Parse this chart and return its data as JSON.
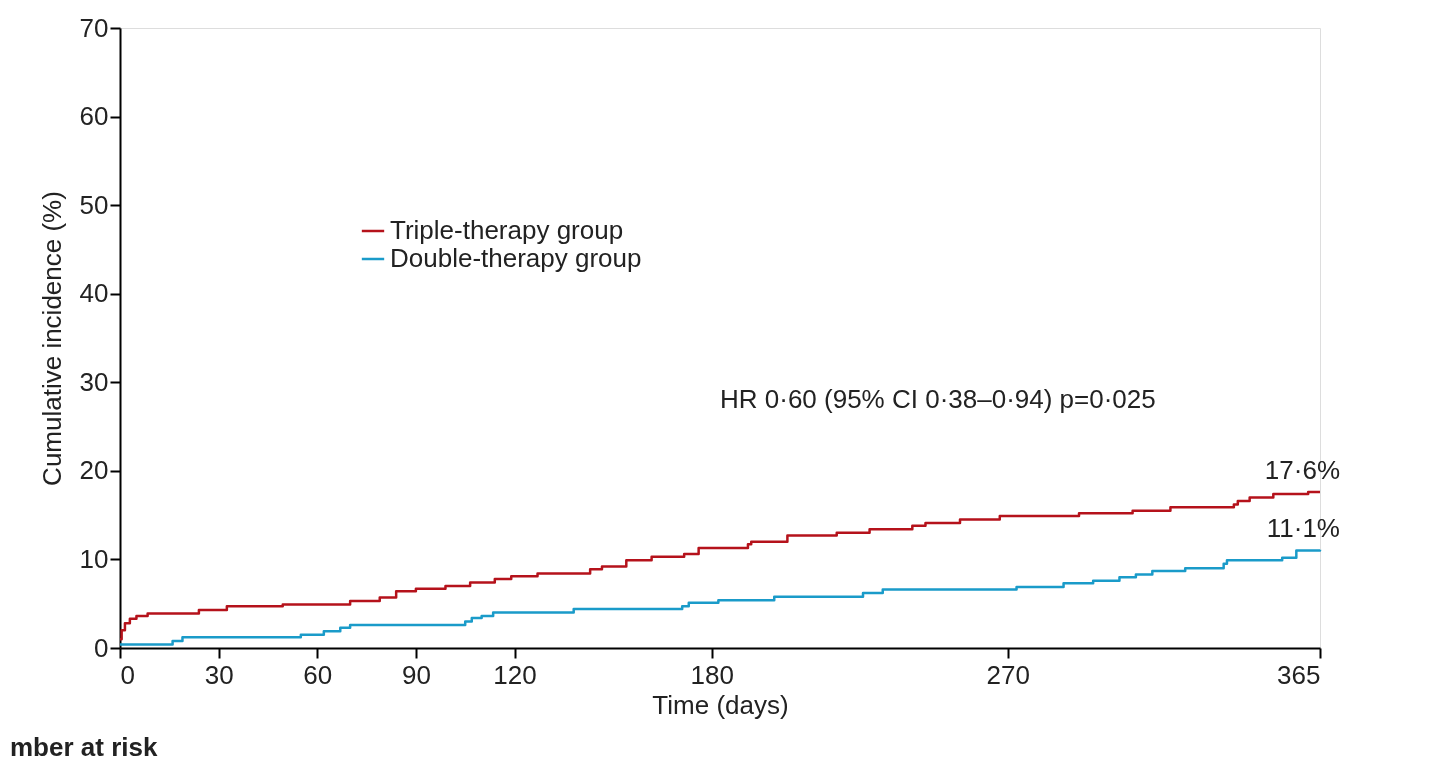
{
  "chart_data": {
    "type": "step",
    "xlabel": "Time (days)",
    "ylabel": "Cumulative incidence (%)",
    "xlim": [
      0,
      365
    ],
    "xticks": [
      0,
      30,
      60,
      90,
      120,
      180,
      270,
      365
    ],
    "ylim": [
      0,
      70
    ],
    "yticks": [
      0,
      10,
      20,
      30,
      40,
      50,
      60,
      70
    ],
    "grid": false,
    "legend": "top left",
    "line_style": "solid",
    "marker": "none",
    "series": [
      {
        "name": "Triple-therapy group",
        "color": "#b5121b",
        "x": [
          0,
          0.5,
          1.5,
          3,
          5,
          8.4,
          24,
          32.5,
          49.5,
          70,
          79,
          84,
          90,
          99,
          106.5,
          114,
          119,
          127,
          143,
          146.6,
          154,
          161.7,
          171.6,
          176,
          191,
          192,
          203,
          218,
          228,
          241,
          245,
          255.5,
          267.6,
          291.7,
          308,
          319.5,
          338.8,
          340,
          343.6,
          350.8,
          361.4,
          365
        ],
        "values": [
          1.0,
          2.0,
          2.8,
          3.3,
          3.6,
          3.9,
          4.3,
          4.7,
          4.9,
          5.3,
          5.7,
          6.4,
          6.7,
          7.0,
          7.4,
          7.8,
          8.1,
          8.4,
          8.9,
          9.2,
          9.9,
          10.3,
          10.6,
          11.3,
          11.7,
          12.0,
          12.7,
          13.0,
          13.4,
          13.8,
          14.1,
          14.5,
          14.9,
          15.2,
          15.5,
          15.9,
          16.2,
          16.6,
          17.0,
          17.4,
          17.6,
          17.6
        ]
      },
      {
        "name": "Double-therapy group",
        "color": "#1a9bc9",
        "x": [
          0,
          16,
          19,
          55,
          62,
          67,
          70,
          105,
          107,
          110,
          113.5,
          138,
          171,
          173,
          182,
          199,
          226,
          232,
          272.7,
          287,
          296,
          304,
          309,
          314,
          324,
          335.7,
          336.7,
          353.5,
          357.8,
          365
        ],
        "values": [
          0.4,
          0.8,
          1.2,
          1.5,
          1.9,
          2.3,
          2.6,
          3.0,
          3.4,
          3.6,
          4.0,
          4.4,
          4.7,
          5.1,
          5.4,
          5.8,
          6.2,
          6.6,
          6.9,
          7.3,
          7.6,
          8.0,
          8.3,
          8.7,
          9.0,
          9.5,
          9.9,
          10.2,
          11.0,
          11.1
        ]
      }
    ],
    "annotations": [
      {
        "text": "17·6%",
        "x": 365,
        "y": 17.6
      },
      {
        "text": "11·1%",
        "x": 365,
        "y": 11.1
      },
      "HR 0·60 (95% CI 0·38–0·94) p=0·025",
      "mber at risk"
    ]
  }
}
